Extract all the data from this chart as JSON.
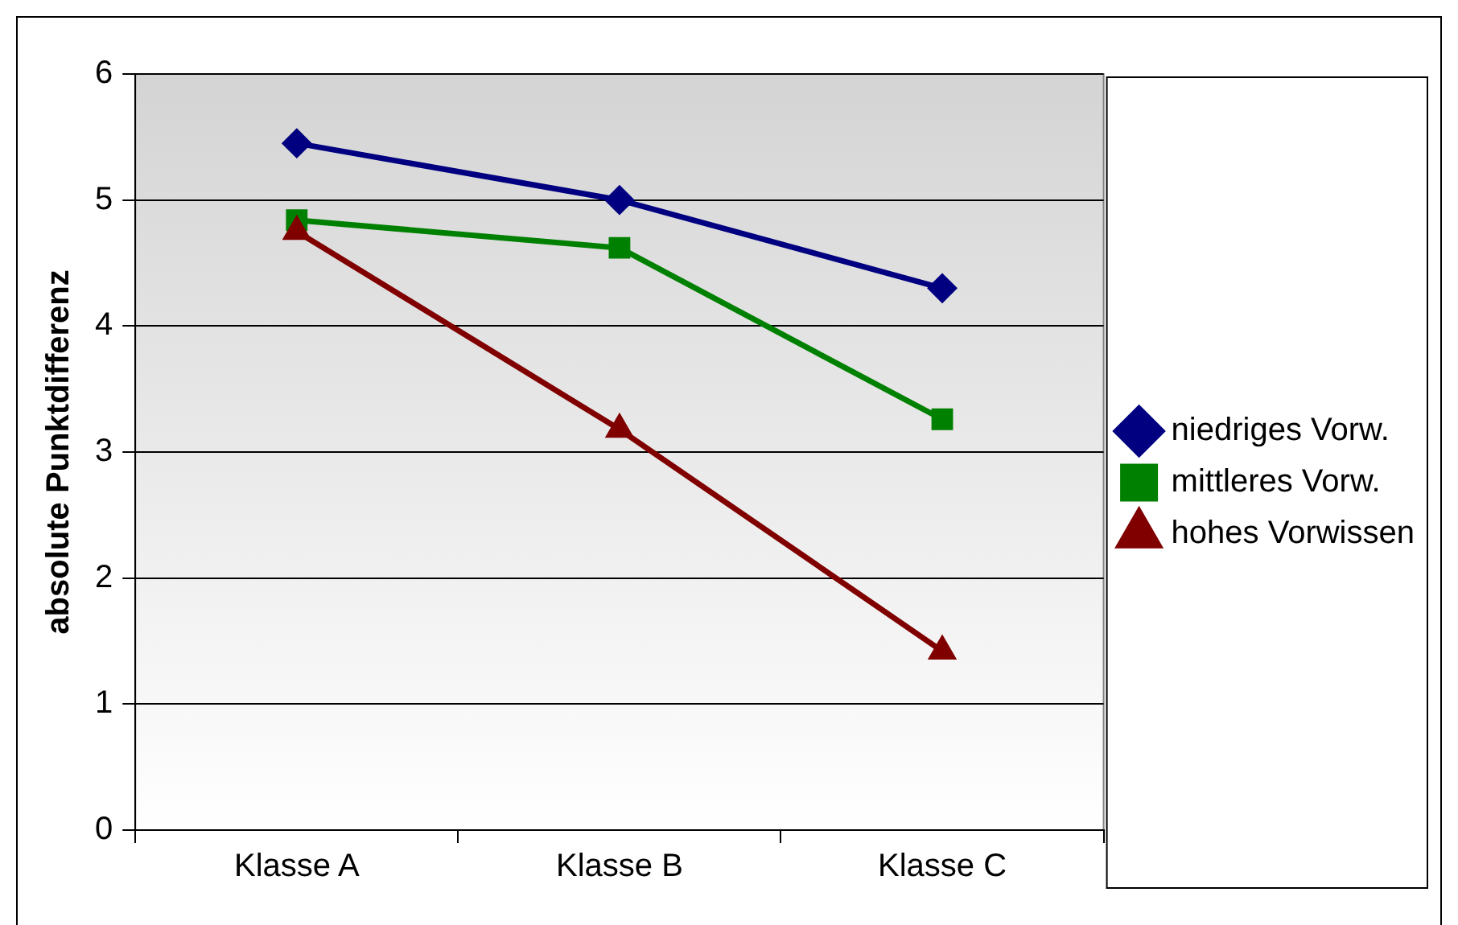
{
  "chart_data": {
    "type": "line",
    "ylabel": "absolute Punktdifferenz",
    "categories": [
      "Klasse A",
      "Klasse B",
      "Klasse C"
    ],
    "series": [
      {
        "name": "niedriges Vorw.",
        "color": "#000080",
        "marker": "diamond",
        "values": [
          5.45,
          5.0,
          4.3
        ]
      },
      {
        "name": "mittleres Vorw.",
        "color": "#008000",
        "marker": "square",
        "values": [
          4.84,
          4.62,
          3.26
        ]
      },
      {
        "name": "hohes Vorwissen",
        "color": "#800000",
        "marker": "triangle",
        "values": [
          4.75,
          3.18,
          1.42
        ]
      }
    ],
    "ylim": [
      0,
      6
    ],
    "yticks": [
      0,
      1,
      2,
      3,
      4,
      5,
      6
    ],
    "grid": "y",
    "legend": "right"
  }
}
